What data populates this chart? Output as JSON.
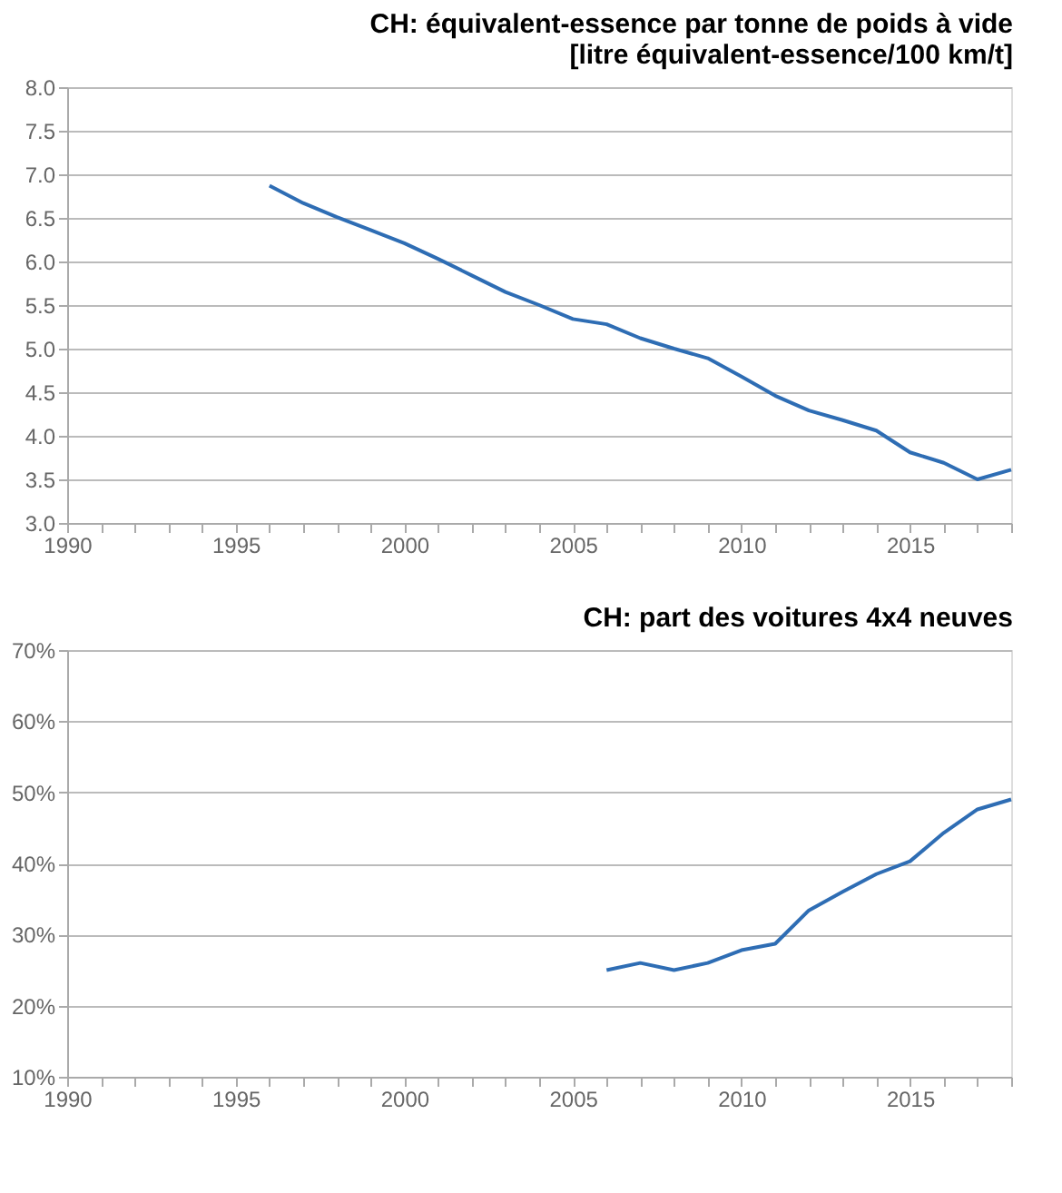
{
  "chart_data": [
    {
      "type": "line",
      "title": "CH: équivalent-essence par tonne de poids à vide\n[litre équivalent-essence/100 km/t]",
      "x": [
        1996,
        1997,
        1998,
        1999,
        2000,
        2001,
        2002,
        2003,
        2004,
        2005,
        2006,
        2007,
        2008,
        2009,
        2010,
        2011,
        2012,
        2013,
        2014,
        2015,
        2016,
        2017,
        2018
      ],
      "series": [
        {
          "color": "#2e6db4",
          "values": [
            6.87,
            6.67,
            6.51,
            6.36,
            6.21,
            6.03,
            5.84,
            5.65,
            5.5,
            5.34,
            5.28,
            5.12,
            5.0,
            4.89,
            4.68,
            4.46,
            4.29,
            4.18,
            4.06,
            3.81,
            3.69,
            3.5,
            3.61
          ]
        }
      ],
      "xlim": [
        1990,
        2018
      ],
      "xticks": [
        1990,
        {
          "value": 1991,
          "label": null
        },
        {
          "value": 1992,
          "label": null
        },
        {
          "value": 1993,
          "label": null
        },
        {
          "value": 1994,
          "label": null
        },
        1995,
        {
          "value": 1996,
          "label": null
        },
        {
          "value": 1997,
          "label": null
        },
        {
          "value": 1998,
          "label": null
        },
        {
          "value": 1999,
          "label": null
        },
        2000,
        {
          "value": 2001,
          "label": null
        },
        {
          "value": 2002,
          "label": null
        },
        {
          "value": 2003,
          "label": null
        },
        {
          "value": 2004,
          "label": null
        },
        2005,
        {
          "value": 2006,
          "label": null
        },
        {
          "value": 2007,
          "label": null
        },
        {
          "value": 2008,
          "label": null
        },
        {
          "value": 2009,
          "label": null
        },
        2010,
        {
          "value": 2011,
          "label": null
        },
        {
          "value": 2012,
          "label": null
        },
        {
          "value": 2013,
          "label": null
        },
        {
          "value": 2014,
          "label": null
        },
        2015,
        {
          "value": 2016,
          "label": null
        },
        {
          "value": 2017,
          "label": null
        },
        {
          "value": 2018,
          "label": null
        }
      ],
      "ylim": [
        3,
        8
      ],
      "yticks": [
        {
          "value": 3,
          "label": "3.0"
        },
        3.5,
        {
          "value": 4,
          "label": "4.0"
        },
        4.5,
        {
          "value": 5,
          "label": "5.0"
        },
        5.5,
        {
          "value": 6,
          "label": "6.0"
        },
        6.5,
        {
          "value": 7,
          "label": "7.0"
        },
        7.5,
        {
          "value": 8,
          "label": "8.0"
        }
      ],
      "grid": "y",
      "legend": false,
      "marker": "none",
      "line_style": "solid"
    },
    {
      "type": "line",
      "title": "CH: part des voitures 4x4 neuves",
      "x": [
        2006,
        2007,
        2008,
        2009,
        2010,
        2011,
        2012,
        2013,
        2014,
        2015,
        2016,
        2017,
        2018
      ],
      "series": [
        {
          "color": "#2e6db4",
          "values": [
            25.0,
            26.0,
            25.0,
            26.0,
            27.8,
            28.7,
            33.4,
            36.0,
            38.5,
            40.3,
            44.3,
            47.6,
            49.0
          ]
        }
      ],
      "xlim": [
        1990,
        2018
      ],
      "xticks": [
        1990,
        {
          "value": 1991,
          "label": null
        },
        {
          "value": 1992,
          "label": null
        },
        {
          "value": 1993,
          "label": null
        },
        {
          "value": 1994,
          "label": null
        },
        1995,
        {
          "value": 1996,
          "label": null
        },
        {
          "value": 1997,
          "label": null
        },
        {
          "value": 1998,
          "label": null
        },
        {
          "value": 1999,
          "label": null
        },
        2000,
        {
          "value": 2001,
          "label": null
        },
        {
          "value": 2002,
          "label": null
        },
        {
          "value": 2003,
          "label": null
        },
        {
          "value": 2004,
          "label": null
        },
        2005,
        {
          "value": 2006,
          "label": null
        },
        {
          "value": 2007,
          "label": null
        },
        {
          "value": 2008,
          "label": null
        },
        {
          "value": 2009,
          "label": null
        },
        2010,
        {
          "value": 2011,
          "label": null
        },
        {
          "value": 2012,
          "label": null
        },
        {
          "value": 2013,
          "label": null
        },
        {
          "value": 2014,
          "label": null
        },
        2015,
        {
          "value": 2016,
          "label": null
        },
        {
          "value": 2017,
          "label": null
        },
        {
          "value": 2018,
          "label": null
        }
      ],
      "ylim": [
        10,
        70
      ],
      "yticks": [
        {
          "value": 10,
          "label": "10%"
        },
        {
          "value": 20,
          "label": "20%"
        },
        {
          "value": 30,
          "label": "30%"
        },
        {
          "value": 40,
          "label": "40%"
        },
        {
          "value": 50,
          "label": "50%"
        },
        {
          "value": 60,
          "label": "60%"
        },
        {
          "value": 70,
          "label": "70%"
        }
      ],
      "grid": "y",
      "legend": false,
      "marker": "none",
      "line_style": "solid"
    }
  ]
}
